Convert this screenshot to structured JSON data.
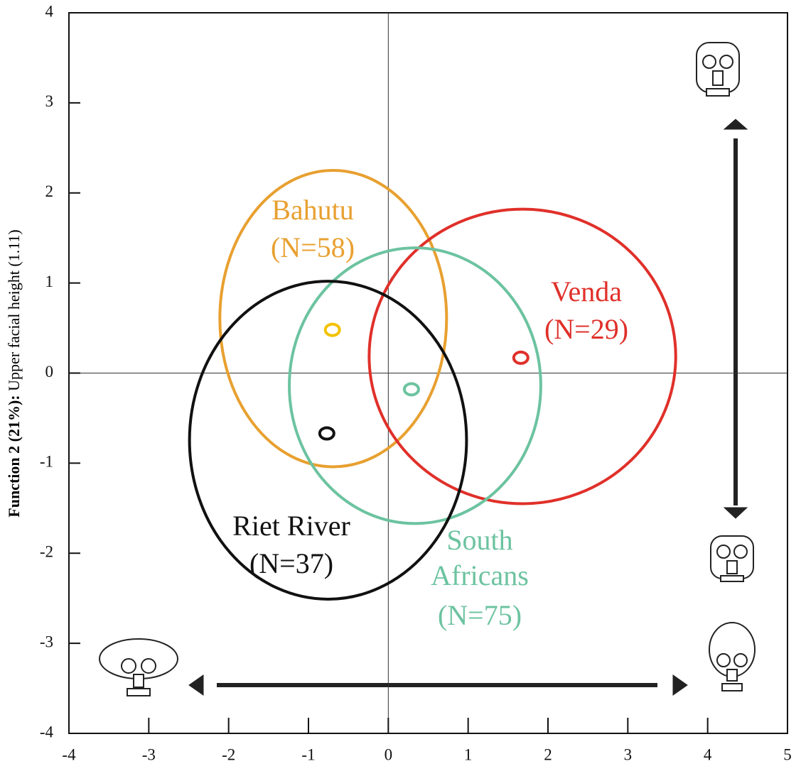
{
  "chart_data": {
    "type": "scatter",
    "ylabel": {
      "bold": "Function 2 (21%):",
      "regular": "Upper facial height (1.11)"
    },
    "xlim": [
      -4,
      5
    ],
    "xticks": [
      -4,
      -3,
      -2,
      -1,
      0,
      1,
      2,
      3,
      4,
      5
    ],
    "ylim": [
      -4,
      4
    ],
    "yticks": [
      -4,
      -3,
      -2,
      -1,
      0,
      1,
      2,
      3,
      4
    ],
    "reference_lines": {
      "x": 0,
      "y": 0
    },
    "series": [
      {
        "name": "Bahutu",
        "n_label": "(N=58)",
        "color": "#e8a030",
        "marker_color": "#f2c200",
        "x": [
          -0.7
        ],
        "values": [
          0.48
        ],
        "ellipse": {
          "x": [
            -2.11,
            0.73
          ],
          "y": [
            -1.04,
            2.25
          ]
        }
      },
      {
        "name": "Venda",
        "n_label": "(N=29)",
        "color": "#e0302a",
        "marker_color": "#e0302a",
        "x": [
          1.66
        ],
        "values": [
          0.17
        ],
        "ellipse": {
          "x": [
            -0.24,
            3.6
          ],
          "y": [
            -1.45,
            1.82
          ]
        }
      },
      {
        "name": "South Africans",
        "n_label": "(N=75)",
        "color": "#6cc3a0",
        "marker_color": "#6cc3a0",
        "x": [
          0.29
        ],
        "values": [
          -0.18
        ],
        "ellipse": {
          "x": [
            -1.24,
            1.91
          ],
          "y": [
            -1.67,
            1.39
          ]
        }
      },
      {
        "name": "Riet River",
        "n_label": "(N=37)",
        "color": "#111111",
        "marker_color": "#111111",
        "x": [
          -0.77
        ],
        "values": [
          -0.67
        ],
        "ellipse": {
          "x": [
            -2.49,
            0.98
          ],
          "y": [
            -2.51,
            1.02
          ]
        }
      }
    ]
  }
}
